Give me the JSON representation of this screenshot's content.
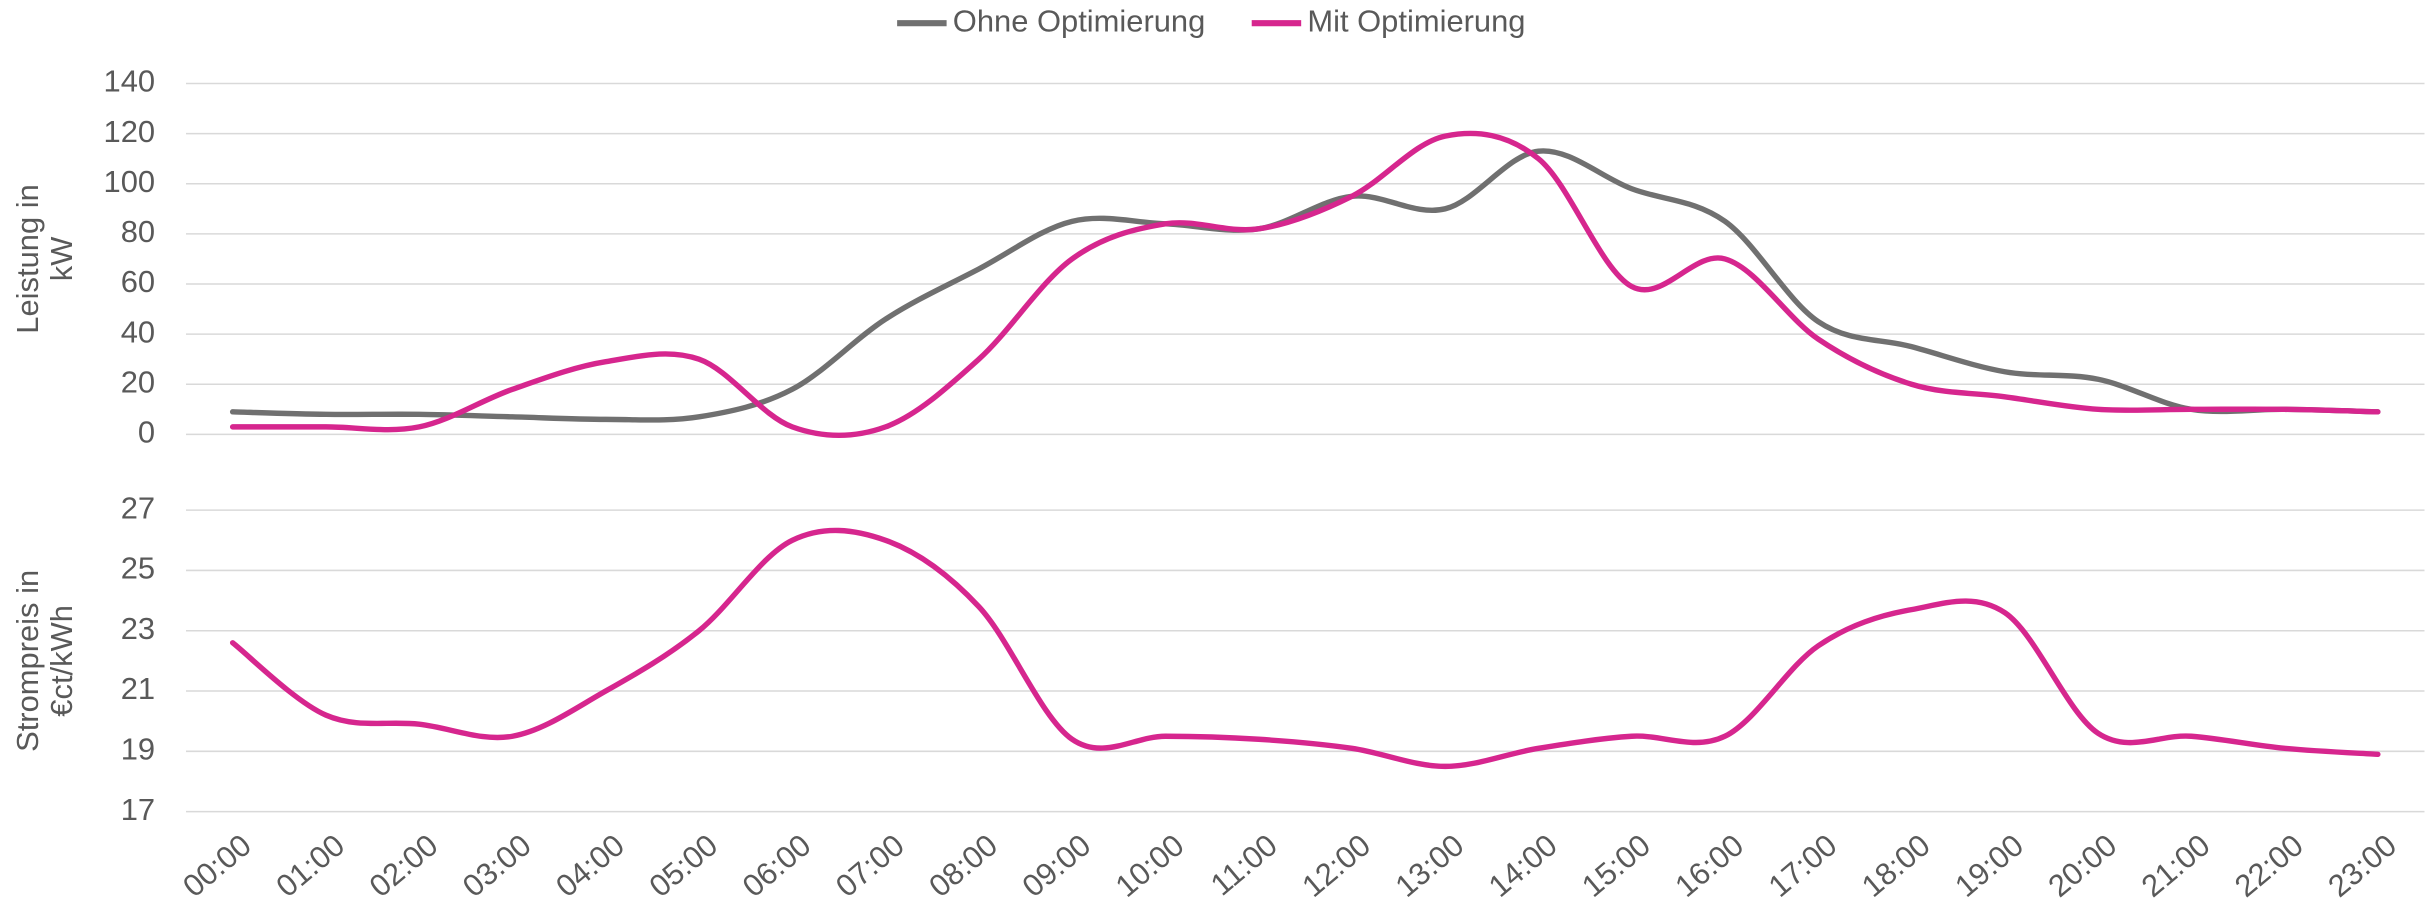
{
  "chart_data": [
    {
      "type": "line",
      "ylabel": [
        "Leistung in",
        "kW"
      ],
      "ylim": [
        0,
        140
      ],
      "yticks": [
        0,
        20,
        40,
        60,
        80,
        100,
        120,
        140
      ],
      "grid": true,
      "legend": "top",
      "series": [
        {
          "name": "Ohne Optimierung",
          "color": "#707070",
          "values": [
            9,
            8,
            8,
            7,
            6,
            7,
            18,
            46,
            66,
            85,
            84,
            82,
            95,
            90,
            113,
            98,
            85,
            45,
            35,
            25,
            22,
            10,
            10,
            9
          ]
        },
        {
          "name": "Mit Optimierung",
          "color": "#d6268e",
          "values": [
            3,
            3,
            3,
            18,
            29,
            30,
            3,
            3,
            30,
            70,
            84,
            82,
            95,
            119,
            110,
            59,
            70,
            38,
            20,
            15,
            10,
            10,
            10,
            9
          ]
        }
      ]
    },
    {
      "type": "line",
      "ylabel": [
        "Strompreis in",
        "€ct/kWh"
      ],
      "categories": [
        "00:00",
        "01:00",
        "02:00",
        "03:00",
        "04:00",
        "05:00",
        "06:00",
        "07:00",
        "08:00",
        "09:00",
        "10:00",
        "11:00",
        "12:00",
        "13:00",
        "14:00",
        "15:00",
        "16:00",
        "17:00",
        "18:00",
        "19:00",
        "20:00",
        "21:00",
        "22:00",
        "23:00"
      ],
      "ylim": [
        17,
        27
      ],
      "yticks": [
        17,
        19,
        21,
        23,
        25,
        27
      ],
      "grid": true,
      "series": [
        {
          "color": "#d6268e",
          "values": [
            22.6,
            20.2,
            19.9,
            19.5,
            21.0,
            23.0,
            26.0,
            26.0,
            23.8,
            19.4,
            19.5,
            19.4,
            19.1,
            18.5,
            19.1,
            19.5,
            19.5,
            22.5,
            23.7,
            23.6,
            19.6,
            19.5,
            19.1,
            18.9
          ]
        }
      ]
    }
  ]
}
